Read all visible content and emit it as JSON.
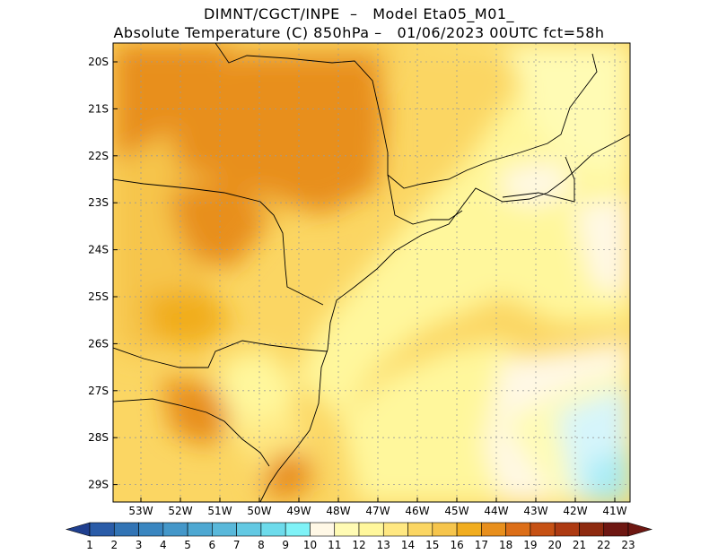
{
  "header": {
    "line1": "DIMNT/CGCT/INPE  –   Model Eta05_M01_",
    "line2": "Absolute Temperature (C) 850hPa –   01/06/2023 00UTC fct=58h"
  },
  "map": {
    "lat_labels": [
      "20S",
      "21S",
      "22S",
      "23S",
      "24S",
      "25S",
      "26S",
      "27S",
      "28S",
      "29S"
    ],
    "lon_labels": [
      "53W",
      "52W",
      "51W",
      "50W",
      "49W",
      "48W",
      "47W",
      "46W",
      "45W",
      "44W",
      "43W",
      "42W",
      "41W"
    ]
  },
  "colorbar": {
    "labels": [
      "1",
      "2",
      "3",
      "4",
      "5",
      "6",
      "7",
      "8",
      "9",
      "10",
      "11",
      "12",
      "13",
      "14",
      "15",
      "16",
      "17",
      "18",
      "19",
      "20",
      "21",
      "22",
      "23"
    ],
    "colors": [
      "#1f3f8f",
      "#2a5ca8",
      "#3274b5",
      "#3a86c0",
      "#4497c9",
      "#4ea8d2",
      "#59b8da",
      "#63c9e3",
      "#6ddbeb",
      "#7ff2f7",
      "#fff8e6",
      "#fffbb4",
      "#fff79c",
      "#ffe882",
      "#fbd663",
      "#f6c54c",
      "#f1ad1f",
      "#e88f1c",
      "#dc6e18",
      "#c65114",
      "#ad3a12",
      "#8e2a0f",
      "#6e1712"
    ]
  }
}
